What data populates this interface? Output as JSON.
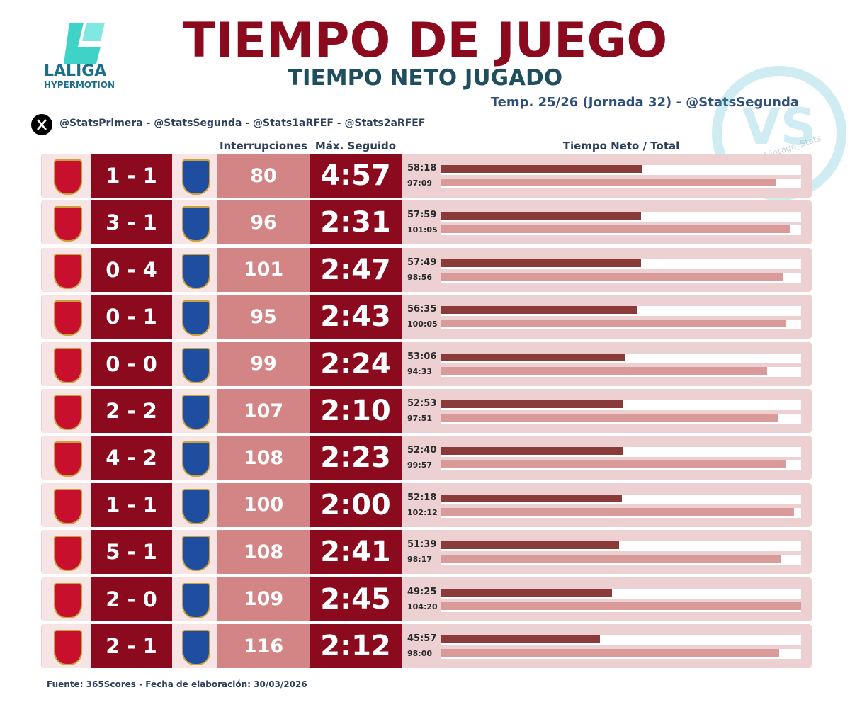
{
  "header": {
    "logo_line1": "LALIGA",
    "logo_line2": "HYPERMOTION",
    "title": "TIEMPO DE JUEGO",
    "subtitle": "TIEMPO NETO JUGADO",
    "season": "Temp. 25/26 (Jornada 32) - @StatsSegunda",
    "accounts": "@StatsPrimera - @StatsSegunda - @Stats1aRFEF - @Stats2aRFEF",
    "watermark": "Vintage_Stats"
  },
  "columns": {
    "interruptions": "Interrupciones",
    "max": "Máx. Seguido",
    "time": "Tiempo Neto / Total"
  },
  "rows": [
    {
      "score": "1 - 1",
      "interruptions": 80,
      "max": "4:57",
      "net": "58:18",
      "total": "97:09"
    },
    {
      "score": "3 - 1",
      "interruptions": 96,
      "max": "2:31",
      "net": "57:59",
      "total": "101:05"
    },
    {
      "score": "0 - 4",
      "interruptions": 101,
      "max": "2:47",
      "net": "57:49",
      "total": "98:56"
    },
    {
      "score": "0 - 1",
      "interruptions": 95,
      "max": "2:43",
      "net": "56:35",
      "total": "100:05"
    },
    {
      "score": "0 - 0",
      "interruptions": 99,
      "max": "2:24",
      "net": "53:06",
      "total": "94:33"
    },
    {
      "score": "2 - 2",
      "interruptions": 107,
      "max": "2:10",
      "net": "52:53",
      "total": "97:51"
    },
    {
      "score": "4 - 2",
      "interruptions": 108,
      "max": "2:23",
      "net": "52:40",
      "total": "99:57"
    },
    {
      "score": "1 - 1",
      "interruptions": 100,
      "max": "2:00",
      "net": "52:18",
      "total": "102:12"
    },
    {
      "score": "5 - 1",
      "interruptions": 108,
      "max": "2:41",
      "net": "51:39",
      "total": "98:17"
    },
    {
      "score": "2 - 0",
      "interruptions": 109,
      "max": "2:45",
      "net": "49:25",
      "total": "104:20"
    },
    {
      "score": "2 - 1",
      "interruptions": 116,
      "max": "2:12",
      "net": "45:57",
      "total": "98:00"
    }
  ],
  "footer": "Fuente: 365Scores - Fecha de elaboración: 30/03/2026"
}
